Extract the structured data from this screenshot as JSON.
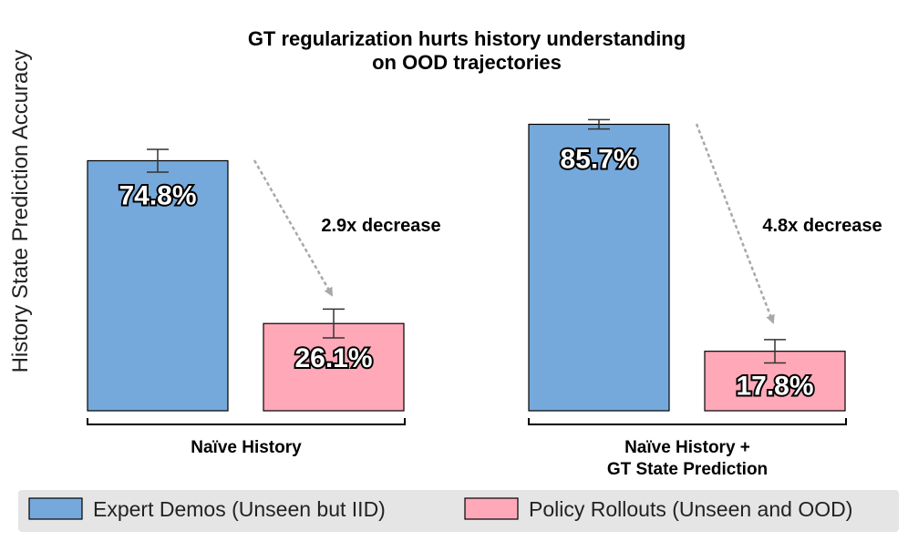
{
  "chart_data": {
    "type": "bar",
    "title": "GT regularization hurts history understanding\non OOD trajectories",
    "ylabel": "History State Prediction Accuracy",
    "ylim": [
      0,
      100
    ],
    "categories": [
      "Naïve History",
      "Naïve History +\nGT State Prediction"
    ],
    "series": [
      {
        "name": "Expert Demos (Unseen but IID)",
        "color": "#76a9db",
        "values": [
          74.8,
          85.7
        ],
        "errors": [
          3.4,
          1.4
        ],
        "labels": [
          "74.8%",
          "85.7%"
        ]
      },
      {
        "name": "Policy Rollouts (Unseen and OOD)",
        "color": "#ffa8b8",
        "values": [
          26.1,
          17.8
        ],
        "errors": [
          4.3,
          3.5
        ],
        "labels": [
          "26.1%",
          "17.8%"
        ]
      }
    ],
    "annotations": [
      {
        "group": 0,
        "text": "2.9x decrease"
      },
      {
        "group": 1,
        "text": "4.8x decrease"
      }
    ],
    "grid": false,
    "legend_position": "bottom"
  }
}
